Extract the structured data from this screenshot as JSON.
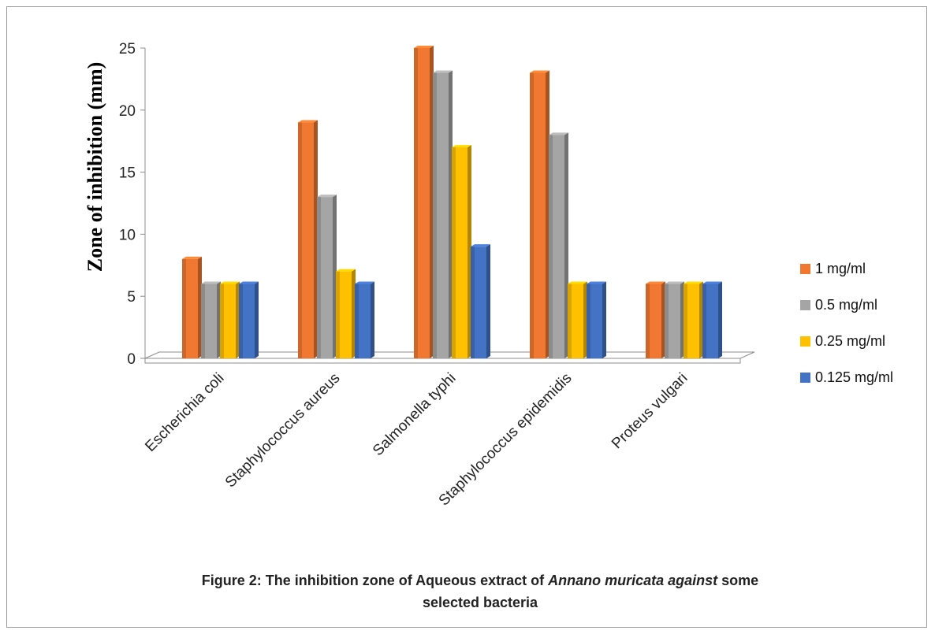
{
  "chart_data": {
    "type": "bar",
    "ylabel": "Zone of inhibition (mm)",
    "ylim": [
      0,
      25
    ],
    "yticks": [
      0,
      5,
      10,
      15,
      20,
      25
    ],
    "categories": [
      "Escherichia coli",
      "Staphylococcus aureus",
      "Salmonella typhi",
      "Staphylococcus epidemidis",
      "Proteus vulgari"
    ],
    "series": [
      {
        "name": "1 mg/ml",
        "color": "#f07830",
        "values": [
          8,
          19,
          25,
          23,
          6
        ]
      },
      {
        "name": "0.5 mg/ml",
        "color": "#a5a5a5",
        "values": [
          6,
          13,
          23,
          18,
          6
        ]
      },
      {
        "name": "0.25 mg/ml",
        "color": "#ffc000",
        "values": [
          6,
          7,
          17,
          6,
          6
        ]
      },
      {
        "name": "0.125 mg/ml",
        "color": "#4472c4",
        "values": [
          6,
          6,
          9,
          6,
          6
        ]
      }
    ],
    "legend": "right",
    "grid": false
  },
  "caption": {
    "prefix": "Figure 2: The inhibition zone of Aqueous extract of ",
    "italic": "Annano muricata against",
    "suffix": " some",
    "line2": "selected bacteria"
  }
}
